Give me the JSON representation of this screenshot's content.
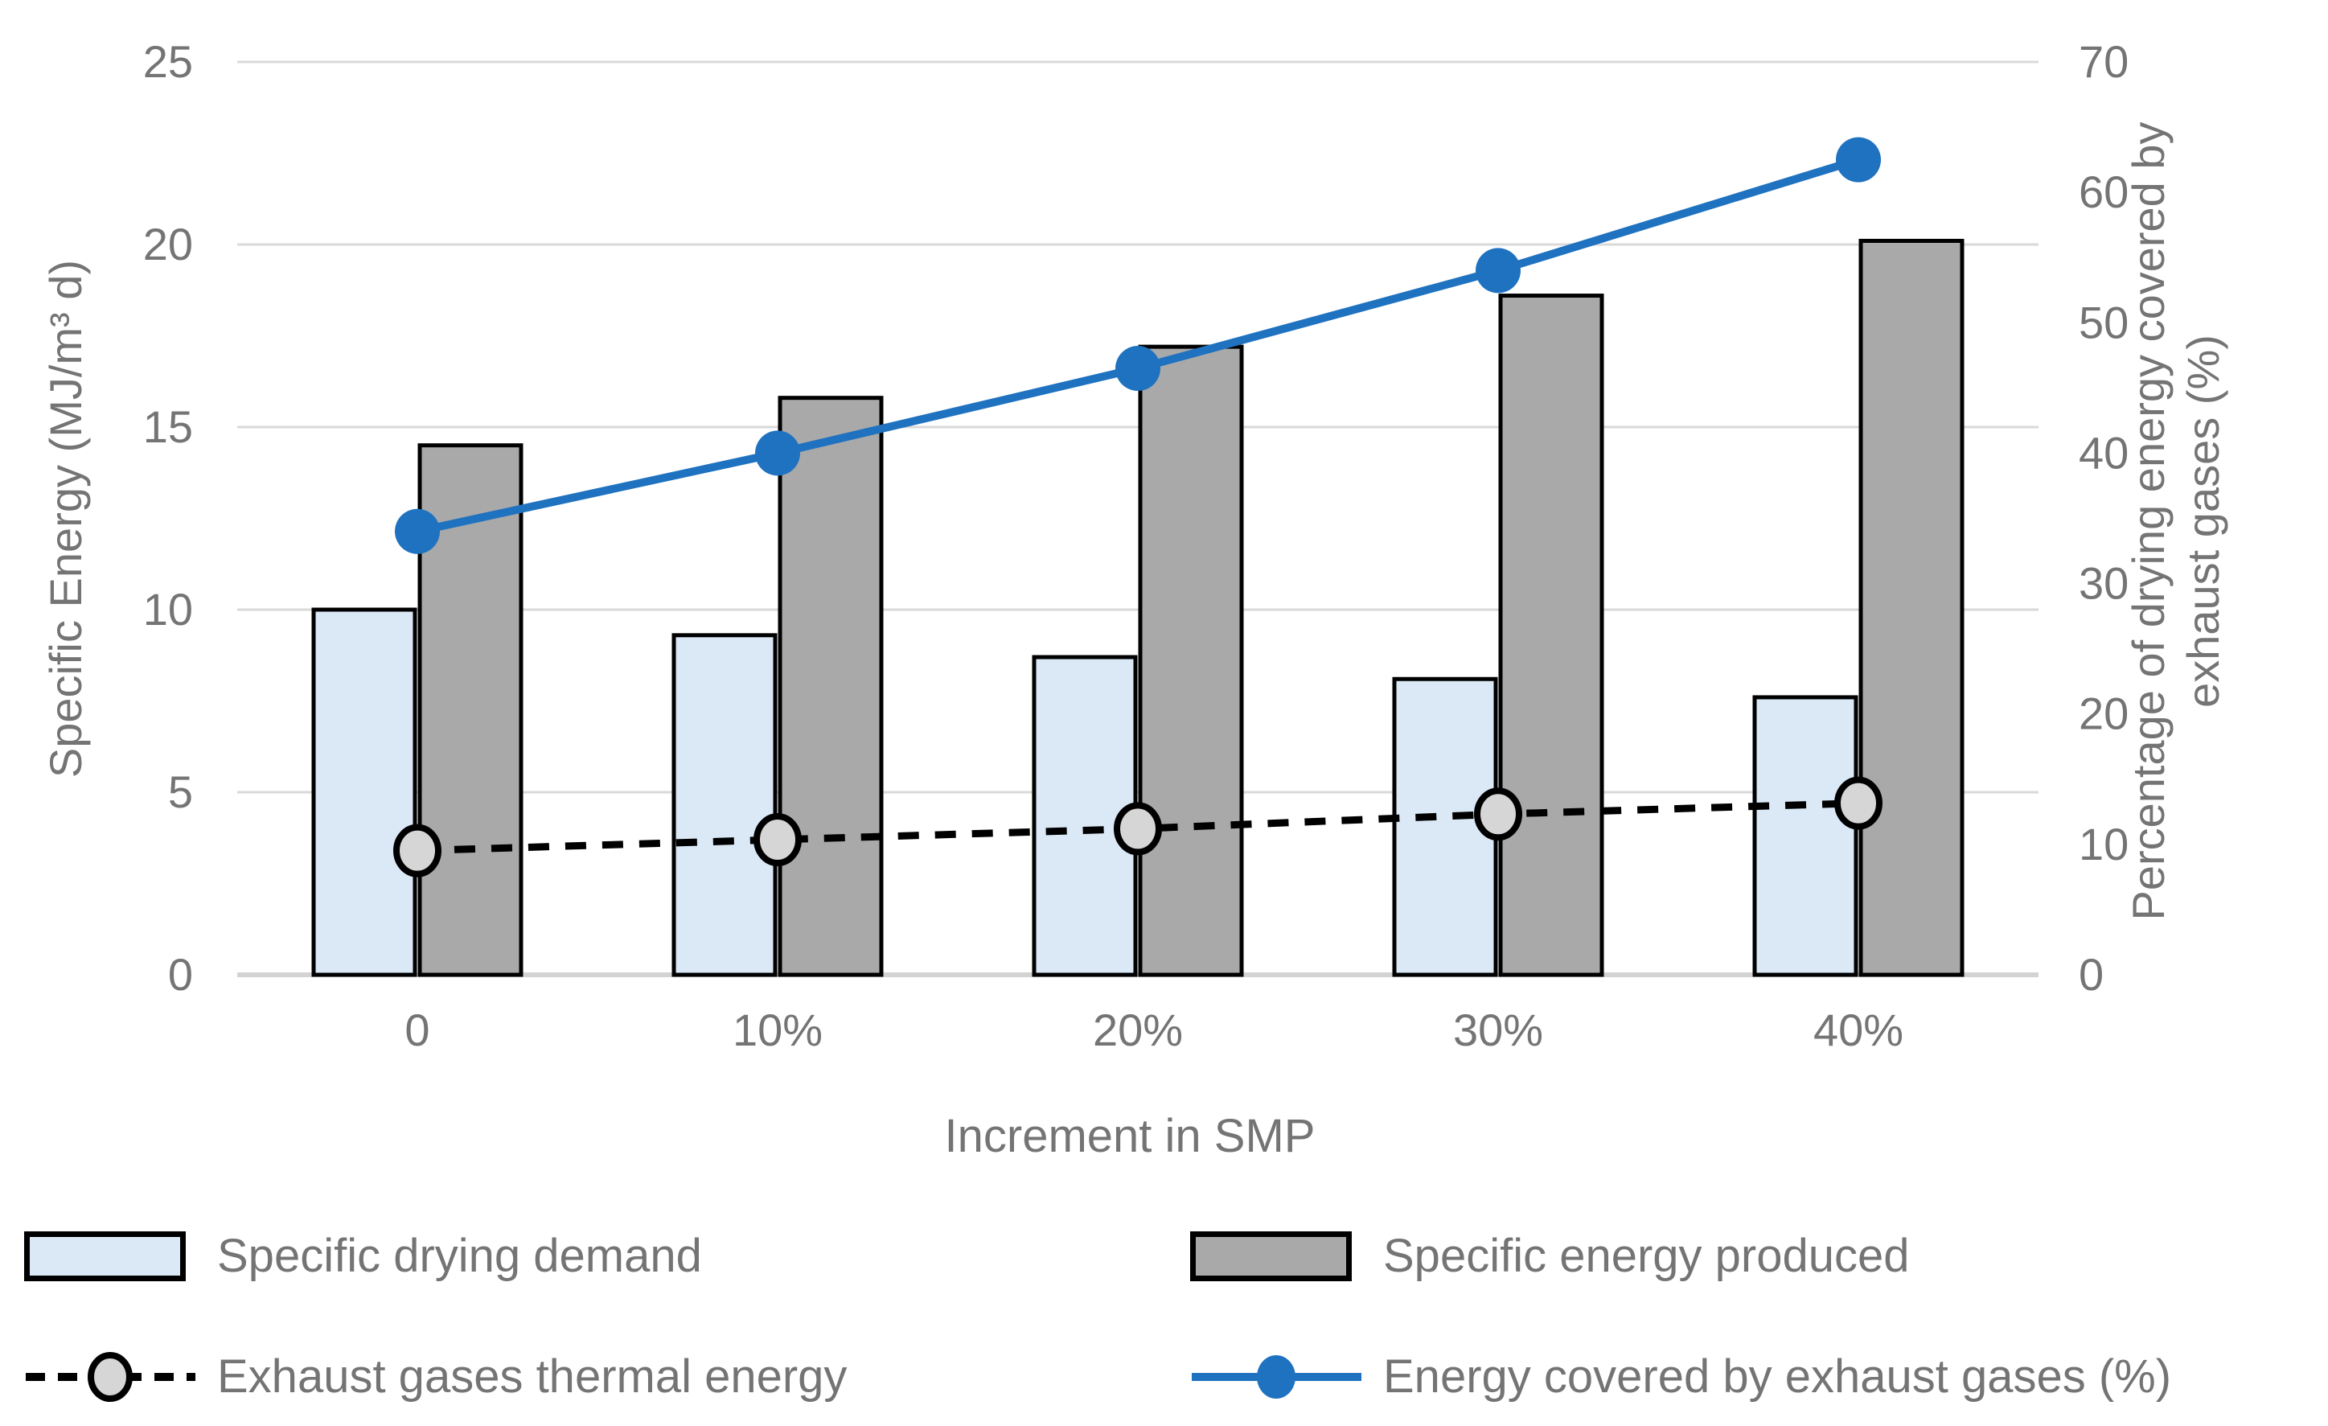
{
  "chart_data": {
    "type": "combo",
    "categories": [
      "0",
      "10%",
      "20%",
      "30%",
      "40%"
    ],
    "series": [
      {
        "name": "Specific drying demand",
        "type": "bar",
        "axis": "left",
        "color": "#dbe9f7",
        "border": "#000000",
        "values": [
          10.0,
          9.3,
          8.7,
          8.1,
          7.6
        ]
      },
      {
        "name": "Specific energy produced",
        "type": "bar",
        "axis": "left",
        "color": "#a9a9a9",
        "border": "#000000",
        "values": [
          14.5,
          15.8,
          17.2,
          18.6,
          20.1
        ]
      },
      {
        "name": "Exhaust gases thermal energy",
        "type": "line",
        "line_style": "dashed",
        "axis": "left",
        "color": "#000000",
        "marker": "circle",
        "marker_fill": "#d6d6d6",
        "marker_stroke": "#000000",
        "values": [
          3.4,
          3.7,
          4.0,
          4.4,
          4.7
        ]
      },
      {
        "name": "Energy covered by exhaust gases (%)",
        "type": "line",
        "line_style": "solid",
        "axis": "right",
        "color": "#1f72c0",
        "marker": "circle",
        "marker_fill": "#1f72c0",
        "marker_stroke": "#1f72c0",
        "values": [
          34,
          40,
          46.5,
          54,
          62.5
        ]
      }
    ],
    "left_axis": {
      "label": "Specific Energy (MJ/m³ d)",
      "min": 0,
      "max": 25,
      "step": 5,
      "ticks": [
        "25",
        "20",
        "15",
        "10",
        "5",
        "0"
      ]
    },
    "right_axis": {
      "label_line1": "Percentage of drying energy covered by",
      "label_line2": "exhaust gases (%)",
      "min": 0,
      "max": 70,
      "step": 10,
      "ticks": [
        "70",
        "60",
        "50",
        "40",
        "30",
        "20",
        "10",
        "0"
      ]
    },
    "x_axis": {
      "label": "Increment in SMP"
    },
    "grid": true,
    "legend_position": "bottom"
  },
  "colors": {
    "accent_blue": "#1f72c0",
    "bar_light_blue": "#dbe9f7",
    "bar_gray": "#a9a9a9",
    "marker_gray": "#d6d6d6",
    "grid": "#d9d9d9",
    "baseline": "#d3d3d3",
    "text": "#747474",
    "black": "#000000"
  }
}
